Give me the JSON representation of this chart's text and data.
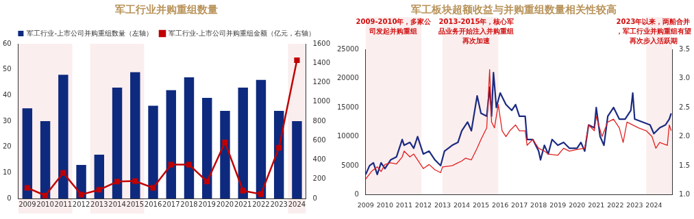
{
  "chart_data": [
    {
      "type": "bar",
      "title": "军工行业并购重组数量",
      "categories": [
        "2009",
        "2010",
        "2011",
        "2012",
        "2013",
        "2014",
        "2015",
        "2016",
        "2017",
        "2018",
        "2019",
        "2020",
        "2021",
        "2022",
        "2023",
        "2024"
      ],
      "series": [
        {
          "name": "军工行业-上市公司并购重组数量（左轴）",
          "color": "#0e2a7e",
          "values": [
            35,
            30,
            48,
            13,
            17,
            43,
            49,
            36,
            42,
            47,
            39,
            34,
            43,
            46,
            34,
            30
          ]
        },
        {
          "name": "军工行业-上市公司并购重组金额（亿元，右轴）",
          "type": "line",
          "axis": "y2",
          "color": "#c00000",
          "values": [
            110,
            30,
            265,
            40,
            90,
            175,
            180,
            110,
            350,
            350,
            175,
            580,
            80,
            45,
            525,
            1430
          ]
        }
      ],
      "ylim": [
        0,
        60
      ],
      "yticks": [
        0,
        10,
        20,
        30,
        40,
        50,
        60
      ],
      "y2lim": [
        0,
        1600
      ],
      "y2ticks": [
        0,
        200,
        400,
        600,
        800,
        1000,
        1200,
        1400,
        1600
      ],
      "bands": [
        {
          "axis": "x",
          "from": "2009",
          "to": "2011",
          "color": "#fbeeee"
        },
        {
          "axis": "x",
          "from": "2013",
          "to": "2015",
          "color": "#fbeeee"
        },
        {
          "axis": "x",
          "from": "2024",
          "to": "2024",
          "color": "#fbeeee"
        }
      ],
      "grid": false,
      "legend": "top",
      "marker": "square"
    },
    {
      "type": "line",
      "title": "军工板块超额收益与并购重组数量相关性较高",
      "series": [
        {
          "color": "#e02020",
          "x": [
            2009.0,
            2009.3,
            2009.6,
            2009.8,
            2010.0,
            2010.3,
            2010.6,
            2010.9,
            2011.0,
            2011.3,
            2011.5,
            2011.8,
            2012.0,
            2012.3,
            2012.6,
            2012.9,
            2013.0,
            2013.5,
            2013.8,
            2014.0,
            2014.2,
            2014.5,
            2014.8,
            2015.0,
            2015.3,
            2015.45,
            2015.55,
            2015.7,
            2015.9,
            2016.1,
            2016.3,
            2016.5,
            2016.8,
            2017.0,
            2017.3,
            2017.4,
            2017.7,
            2018.0,
            2018.3,
            2018.5,
            2019.0,
            2019.3,
            2019.6,
            2020.0,
            2020.4,
            2020.6,
            2020.9,
            2021.0,
            2021.3,
            2021.6,
            2021.9,
            2022.2,
            2022.4,
            2022.6,
            2022.9,
            2023.2,
            2023.6,
            2023.9,
            2024.1,
            2024.3,
            2024.7,
            2024.8,
            2024.9
          ],
          "values": [
            2700,
            4000,
            4800,
            4000,
            5200,
            5500,
            5300,
            6500,
            7500,
            6500,
            7000,
            5500,
            4500,
            5200,
            4300,
            3800,
            4800,
            5000,
            5500,
            5800,
            6300,
            6000,
            8000,
            9500,
            11500,
            21500,
            12500,
            11500,
            15500,
            11000,
            10000,
            11000,
            12000,
            11000,
            11000,
            8500,
            9500,
            8000,
            7500,
            7000,
            6800,
            8000,
            7500,
            7800,
            8000,
            12000,
            11000,
            13500,
            10000,
            12500,
            13000,
            11500,
            9000,
            12500,
            12000,
            11500,
            11000,
            10000,
            8000,
            9000,
            8500,
            12000,
            11000
          ]
        },
        {
          "color": "#1a2a80",
          "axis": "y2",
          "x": [
            2009.0,
            2009.2,
            2009.4,
            2009.6,
            2009.8,
            2010.0,
            2010.3,
            2010.6,
            2010.9,
            2011.0,
            2011.3,
            2011.5,
            2011.7,
            2012.0,
            2012.3,
            2012.6,
            2012.9,
            2013.1,
            2013.5,
            2013.8,
            2014.0,
            2014.3,
            2014.5,
            2014.8,
            2015.0,
            2015.3,
            2015.45,
            2015.55,
            2015.65,
            2015.8,
            2016.0,
            2016.3,
            2016.6,
            2016.8,
            2017.0,
            2017.3,
            2017.4,
            2017.7,
            2018.0,
            2018.1,
            2018.3,
            2018.5,
            2018.7,
            2019.0,
            2019.3,
            2019.6,
            2020.0,
            2020.2,
            2020.4,
            2020.6,
            2020.9,
            2021.0,
            2021.2,
            2021.4,
            2021.6,
            2021.9,
            2022.2,
            2022.5,
            2022.8,
            2022.9,
            2023.0,
            2023.4,
            2023.8,
            2024.0,
            2024.3,
            2024.6,
            2024.8,
            2024.9
          ],
          "values": [
            1.35,
            1.5,
            1.55,
            1.35,
            1.55,
            1.45,
            1.6,
            1.65,
            1.95,
            1.85,
            1.9,
            1.8,
            2.0,
            1.7,
            1.75,
            1.6,
            1.5,
            1.75,
            1.85,
            1.9,
            2.1,
            2.25,
            2.1,
            2.7,
            2.4,
            2.35,
            2.85,
            2.35,
            3.1,
            2.5,
            2.75,
            2.55,
            2.45,
            2.55,
            2.35,
            2.35,
            1.95,
            1.95,
            1.75,
            1.6,
            1.85,
            1.7,
            1.95,
            1.85,
            1.9,
            1.8,
            1.8,
            1.9,
            1.75,
            2.2,
            2.15,
            2.5,
            2.0,
            1.85,
            2.35,
            2.5,
            2.3,
            2.3,
            2.45,
            2.75,
            2.3,
            2.25,
            2.2,
            2.05,
            2.15,
            2.2,
            2.3,
            2.4
          ]
        }
      ],
      "xlim": [
        2009,
        2024.95
      ],
      "xticks": [
        2009,
        2010,
        2011,
        2012,
        2013,
        2014,
        2015,
        2016,
        2017,
        2018,
        2019,
        2020,
        2021,
        2022,
        2023,
        2024
      ],
      "ylim": [
        0,
        25000
      ],
      "yticks": [
        0,
        5000,
        10000,
        15000,
        20000,
        25000
      ],
      "y2lim": [
        1,
        3.5
      ],
      "y2ticks": [
        {
          "value": 1,
          "label": "1.0"
        },
        {
          "value": 1.5,
          "label": "1.5"
        },
        {
          "value": 2,
          "label": "2.0"
        },
        {
          "value": 2.5,
          "label": "2.5"
        },
        {
          "value": 3,
          "label": "3.0"
        },
        {
          "value": 3.5,
          "label": "3.5"
        }
      ],
      "bands": [
        {
          "axis": "x",
          "from": 2009,
          "to": 2011.9,
          "color": "#fbeeee"
        },
        {
          "axis": "x",
          "from": 2013,
          "to": 2015.9,
          "color": "#fbeeee"
        },
        {
          "axis": "x",
          "from": 2023.6,
          "to": 2024.95,
          "color": "#fbeeee"
        }
      ],
      "annotations": [
        "2009-2010年，多家公司发起并购重组",
        "2013-2015年，核心军品业务开始注入并购重组再次加速",
        "2023年以来，两船合并，军工行业并购重组有望再次步入活跃期"
      ],
      "grid": false,
      "marker": "none"
    }
  ]
}
